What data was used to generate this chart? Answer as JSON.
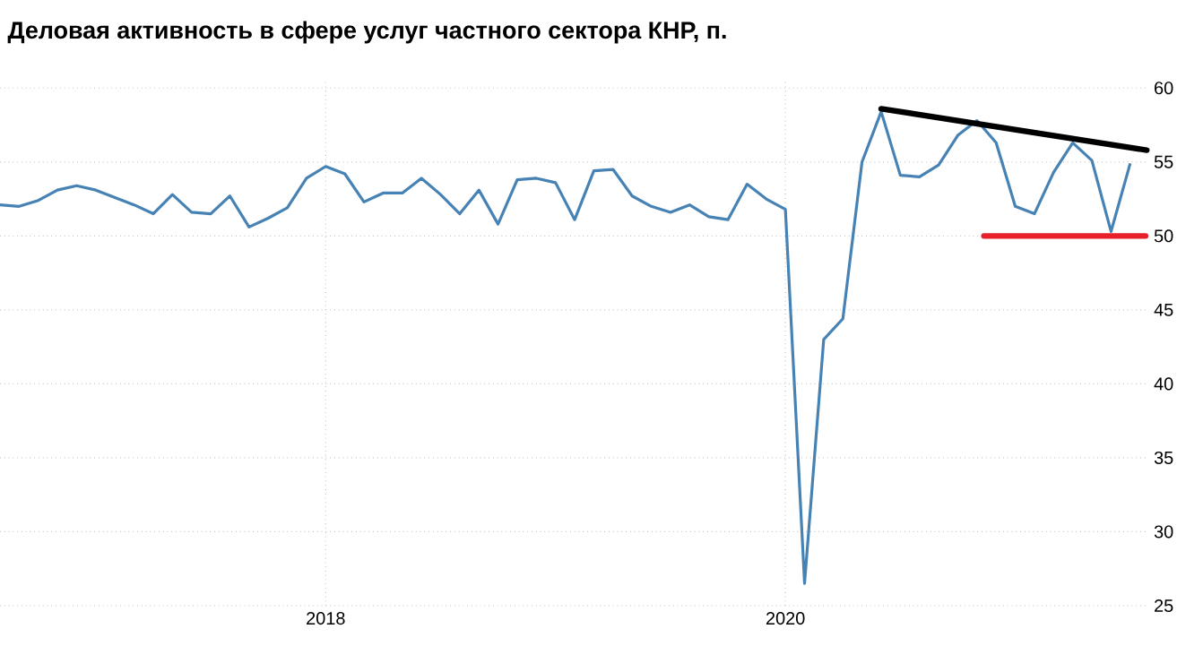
{
  "chart_data": {
    "type": "line",
    "title": "Деловая активность в сфере услуг частного сектора КНР, п.",
    "x": [
      "2016-08",
      "2016-09",
      "2016-10",
      "2016-11",
      "2016-12",
      "2017-01",
      "2017-02",
      "2017-03",
      "2017-04",
      "2017-05",
      "2017-06",
      "2017-07",
      "2017-08",
      "2017-09",
      "2017-10",
      "2017-11",
      "2017-12",
      "2018-01",
      "2018-02",
      "2018-03",
      "2018-04",
      "2018-05",
      "2018-06",
      "2018-07",
      "2018-08",
      "2018-09",
      "2018-10",
      "2018-11",
      "2018-12",
      "2019-01",
      "2019-02",
      "2019-03",
      "2019-04",
      "2019-05",
      "2019-06",
      "2019-07",
      "2019-08",
      "2019-09",
      "2019-10",
      "2019-11",
      "2019-12",
      "2020-01",
      "2020-02",
      "2020-03",
      "2020-04",
      "2020-05",
      "2020-06",
      "2020-07",
      "2020-08",
      "2020-09",
      "2020-10",
      "2020-11",
      "2020-12",
      "2021-01",
      "2021-02",
      "2021-03",
      "2021-04",
      "2021-05",
      "2021-06",
      "2021-07"
    ],
    "series": [
      {
        "color": "#4682b4",
        "values": [
          52.1,
          52.0,
          52.4,
          53.1,
          53.4,
          53.1,
          52.6,
          52.1,
          51.5,
          52.8,
          51.6,
          51.5,
          52.7,
          50.6,
          51.2,
          51.9,
          53.9,
          54.7,
          54.2,
          52.3,
          52.9,
          52.9,
          53.9,
          52.8,
          51.5,
          53.1,
          50.8,
          53.8,
          53.9,
          53.6,
          51.1,
          54.4,
          54.5,
          52.7,
          52.0,
          51.6,
          52.1,
          51.3,
          51.1,
          53.5,
          52.5,
          51.8,
          26.5,
          43.0,
          44.4,
          55.0,
          58.4,
          54.1,
          54.0,
          54.8,
          56.8,
          57.8,
          56.3,
          52.0,
          51.5,
          54.3,
          56.3,
          55.1,
          50.3,
          54.9
        ]
      },
      {
        "type": "line",
        "color": "#000000",
        "x": [
          "2020-06-01",
          "2021-07-27"
        ],
        "values": [
          58.6,
          55.8
        ]
      },
      {
        "type": "line",
        "color": "#e8202a",
        "x": [
          "2020-11-12",
          "2021-07-25"
        ],
        "values": [
          50,
          50
        ]
      }
    ],
    "xlim": [
      "2016-08-01",
      "2021-07-28"
    ],
    "ylim": [
      25,
      60.5
    ],
    "xticks": [
      {
        "value": "2018-01-01",
        "label": "2018"
      },
      {
        "value": "2020-01-01",
        "label": "2020"
      }
    ],
    "yticks": [
      25,
      30,
      35,
      40,
      45,
      50,
      55,
      60
    ],
    "grid": true
  }
}
